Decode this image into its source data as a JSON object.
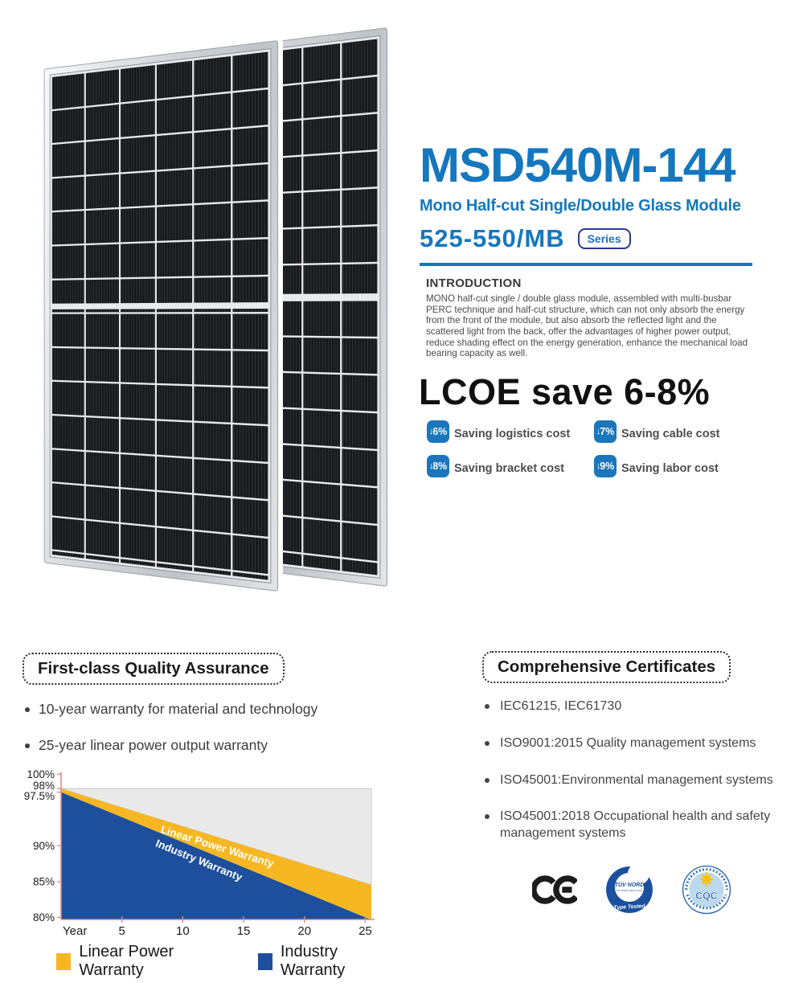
{
  "product": {
    "model": "MSD540M-144",
    "subtitle": "Mono Half-cut Single/Double Glass Module",
    "range": "525-550/MB",
    "series_label": "Series"
  },
  "introduction": {
    "heading": "INTRODUCTION",
    "body": "MONO half-cut single / double glass module, assembled with multi-busbar PERC technique and half-cut structure, which can not only absorb the energy from the front of the module, but also absorb the reflected light and the scattered light from the back, offer the advantages of higher power output, reduce shading effect on the energy generation, enhance the mechanical load bearing capacity as well."
  },
  "lcoe": {
    "heading": "LCOE save 6-8%",
    "savings": [
      {
        "pct": "6%",
        "label": "Saving logistics cost"
      },
      {
        "pct": "7%",
        "label": "Saving cable cost"
      },
      {
        "pct": "8%",
        "label": "Saving bracket cost"
      },
      {
        "pct": "9%",
        "label": "Saving labor cost"
      }
    ]
  },
  "quality": {
    "heading": "First-class Quality Assurance",
    "bullets": [
      "10-year warranty for material and technology",
      "25-year linear power output warranty"
    ]
  },
  "chart_data": {
    "type": "area",
    "x_label": "Year",
    "x_ticks": [
      5,
      10,
      15,
      20,
      25
    ],
    "y_ticks": [
      "100%",
      "98%",
      "97.5%",
      "90%",
      "85%",
      "80%"
    ],
    "x_range": [
      0,
      25.5
    ],
    "y_range": [
      79.7,
      100.6
    ],
    "plot_top_value": 98,
    "series": [
      {
        "name": "Linear Power Warranty",
        "color": "#F6B723",
        "points": [
          {
            "year": 0,
            "value": 98
          },
          {
            "year": 25,
            "value": 84.8
          }
        ]
      },
      {
        "name": "Industry Warranty",
        "color": "#1E4F9C",
        "points": [
          {
            "year": 0,
            "value": 97.5
          },
          {
            "year": 25,
            "value": 80
          }
        ]
      }
    ],
    "legend": [
      "Linear Power Warranty",
      "Industry Warranty"
    ],
    "legend_position": "bottom",
    "grid": false,
    "background_color": "#E9E9E9",
    "axis_color": "#E08A8A"
  },
  "certificates": {
    "heading": "Comprehensive Certificates",
    "items": [
      "IEC61215, IEC61730",
      "ISO9001:2015 Quality management systems",
      "ISO45001:Environmental management systems",
      "ISO45001:2018 Occupational health and safety management systems"
    ]
  },
  "logos": {
    "ce": "CE",
    "tuv": {
      "name": "TÜV NORD",
      "cert": "TÜV NORD CERT GmbH",
      "tagline": "Type Tested"
    },
    "cqc": {
      "name": "CQC"
    }
  },
  "colors": {
    "accent_blue": "#1577BE",
    "badge_blue": "#1B76BC",
    "series_border_navy": "#2B3990",
    "chart_yellow": "#F6B723",
    "chart_blue": "#1E4F9C",
    "chart_gray": "#E9E9E9",
    "chart_axis_red": "#E08A8A"
  }
}
